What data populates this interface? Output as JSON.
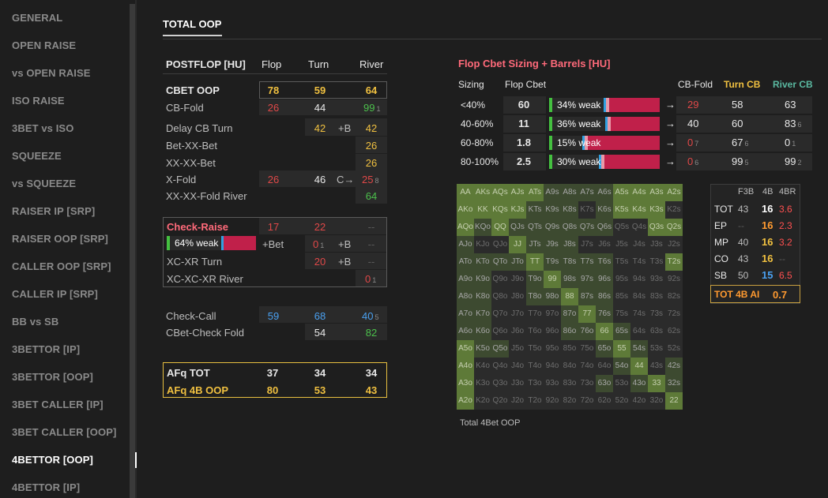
{
  "sidebar": {
    "items": [
      "GENERAL",
      "OPEN RAISE",
      "vs OPEN RAISE",
      "ISO RAISE",
      "3BET vs ISO",
      "SQUEEZE",
      "vs SQUEEZE",
      "RAISER IP [SRP]",
      "RAISER OOP [SRP]",
      "CALLER OOP [SRP]",
      "CALLER IP [SRP]",
      "BB vs SB",
      "3BETTOR [IP]",
      "3BETTOR [OOP]",
      "3BET CALLER [IP]",
      "3BET CALLER [OOP]",
      "4BETTOR [OOP]",
      "4BETTOR [IP]"
    ],
    "active": "4BETTOR [OOP]"
  },
  "page": {
    "title": "TOTAL OOP"
  },
  "postflop": {
    "header": {
      "label": "POSTFLOP [HU]",
      "flop": "Flop",
      "turn": "Turn",
      "river": "River"
    },
    "cbet_oop": {
      "label": "CBET OOP",
      "flop": "78",
      "turn": "59",
      "river": "64"
    },
    "cb_fold": {
      "label": "CB-Fold",
      "flop": "26",
      "turn": "44",
      "river": "99",
      "river_sub": "1"
    },
    "delay_cb_turn": {
      "label": "Delay CB Turn",
      "turn": "42",
      "mid": "+B",
      "river": "42"
    },
    "bet_xx_bet": {
      "label": "Bet-XX-Bet",
      "river": "26"
    },
    "xx_xx_bet": {
      "label": "XX-XX-Bet",
      "river": "26"
    },
    "x_fold": {
      "label": "X-Fold",
      "flop": "26",
      "turn": "46",
      "mid": "C→",
      "river": "25",
      "river_sub": "8"
    },
    "xx_xx_fold_river": {
      "label": "XX-XX-Fold River",
      "river": "64"
    },
    "check_raise": {
      "label": "Check-Raise",
      "flop": "17",
      "turn": "22",
      "river": "--"
    },
    "cr_bar": {
      "label": "64% weak",
      "weak_pct": 64,
      "mid": "+Bet",
      "turn": "0",
      "turn_sub": "1",
      "mid2": "+B",
      "river": "--"
    },
    "xc_xr_turn": {
      "label": "XC-XR Turn",
      "turn": "20",
      "mid": "+B",
      "river": "--"
    },
    "xc_xc_xr_river": {
      "label": "XC-XC-XR River",
      "river": "0",
      "river_sub": "1"
    },
    "check_call": {
      "label": "Check-Call",
      "flop": "59",
      "turn": "68",
      "river": "40",
      "river_sub": "5"
    },
    "cbet_check_fold": {
      "label": "CBet-Check Fold",
      "turn": "54",
      "river": "82"
    },
    "afq_tot": {
      "label": "AFq TOT",
      "flop": "37",
      "turn": "34",
      "river": "34"
    },
    "afq_4b_oop": {
      "label": "AFq 4B OOP",
      "flop": "80",
      "turn": "53",
      "river": "43"
    }
  },
  "sizing": {
    "title": "Flop Cbet Sizing + Barrels [HU]",
    "headers": {
      "sizing": "Sizing",
      "flop_cbet": "Flop Cbet",
      "cb_fold": "CB-Fold",
      "turn_cb": "Turn CB",
      "river_cb": "River CB"
    },
    "rows": [
      {
        "size": "<40%",
        "cbet": "60",
        "bar": "34% weak",
        "weak_pct": 34,
        "arrow": "→",
        "cb_fold": "29",
        "cb_fold_sub": "",
        "turn": "58",
        "turn_sub": "",
        "river": "63",
        "river_sub": ""
      },
      {
        "size": "40-60%",
        "cbet": "11",
        "bar": "36% weak",
        "weak_pct": 36,
        "arrow": "→",
        "cb_fold": "40",
        "cb_fold_sub": "",
        "turn": "60",
        "turn_sub": "",
        "river": "83",
        "river_sub": "6"
      },
      {
        "size": "60-80%",
        "cbet": "1.8",
        "bar": "15% weak",
        "weak_pct": 15,
        "arrow": "→",
        "cb_fold": "0",
        "cb_fold_sub": "7",
        "turn": "67",
        "turn_sub": "6",
        "river": "0",
        "river_sub": "1"
      },
      {
        "size": "80-100%",
        "cbet": "2.5",
        "bar": "30% weak",
        "weak_pct": 30,
        "arrow": "→",
        "cb_fold": "0",
        "cb_fold_sub": "6",
        "turn": "99",
        "turn_sub": "5",
        "river": "99",
        "river_sub": "2"
      }
    ]
  },
  "range_grid": {
    "ranks": [
      "A",
      "K",
      "Q",
      "J",
      "T",
      "9",
      "8",
      "7",
      "6",
      "5",
      "4",
      "3",
      "2"
    ],
    "footer": "Total 4Bet OOP"
  },
  "position_table": {
    "headers": [
      "F3B",
      "4B",
      "4BR"
    ],
    "rows": [
      {
        "pos": "TOT",
        "f3b": "43",
        "fb": "16",
        "fbr": "3.6"
      },
      {
        "pos": "EP",
        "f3b": "--",
        "fb": "16",
        "fbr": "2.3"
      },
      {
        "pos": "MP",
        "f3b": "40",
        "fb": "16",
        "fbr": "3.2"
      },
      {
        "pos": "CO",
        "f3b": "43",
        "fb": "16",
        "fbr": "--"
      },
      {
        "pos": "SB",
        "f3b": "50",
        "fb": "15",
        "fbr": "6.5"
      }
    ],
    "footer": {
      "label": "TOT 4B AI",
      "value": "0.7"
    }
  }
}
